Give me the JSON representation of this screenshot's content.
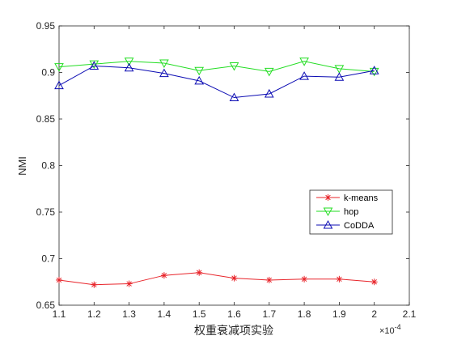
{
  "chart_data": {
    "type": "line",
    "title": "",
    "xlabel": "权重衰减项实验",
    "ylabel": "NMI",
    "x_multiplier": "×10",
    "x_multiplier_exponent": "-4",
    "xlim": [
      1.1,
      2.1
    ],
    "ylim": [
      0.65,
      0.95
    ],
    "xticks": [
      "1.1",
      "1.2",
      "1.3",
      "1.4",
      "1.5",
      "1.6",
      "1.7",
      "1.8",
      "1.9",
      "2",
      "2.1"
    ],
    "yticks": [
      "0.65",
      "0.7",
      "0.75",
      "0.8",
      "0.85",
      "0.9",
      "0.95"
    ],
    "grid": false,
    "legend_position": "center-right",
    "x": [
      1.1,
      1.2,
      1.3,
      1.4,
      1.5,
      1.6,
      1.7,
      1.8,
      1.9,
      2.0
    ],
    "series": [
      {
        "name": "k-means",
        "color": "#e8242a",
        "marker": "asterisk",
        "values": [
          0.677,
          0.672,
          0.673,
          0.682,
          0.685,
          0.679,
          0.677,
          0.678,
          0.678,
          0.675
        ]
      },
      {
        "name": "hop",
        "color": "#22dd22",
        "marker": "triangle-down",
        "values": [
          0.906,
          0.909,
          0.912,
          0.91,
          0.902,
          0.907,
          0.901,
          0.912,
          0.904,
          0.901
        ]
      },
      {
        "name": "CoDDA",
        "color": "#0b0bb3",
        "marker": "triangle-up",
        "values": [
          0.886,
          0.907,
          0.905,
          0.899,
          0.891,
          0.873,
          0.877,
          0.896,
          0.895,
          0.902
        ]
      }
    ]
  }
}
